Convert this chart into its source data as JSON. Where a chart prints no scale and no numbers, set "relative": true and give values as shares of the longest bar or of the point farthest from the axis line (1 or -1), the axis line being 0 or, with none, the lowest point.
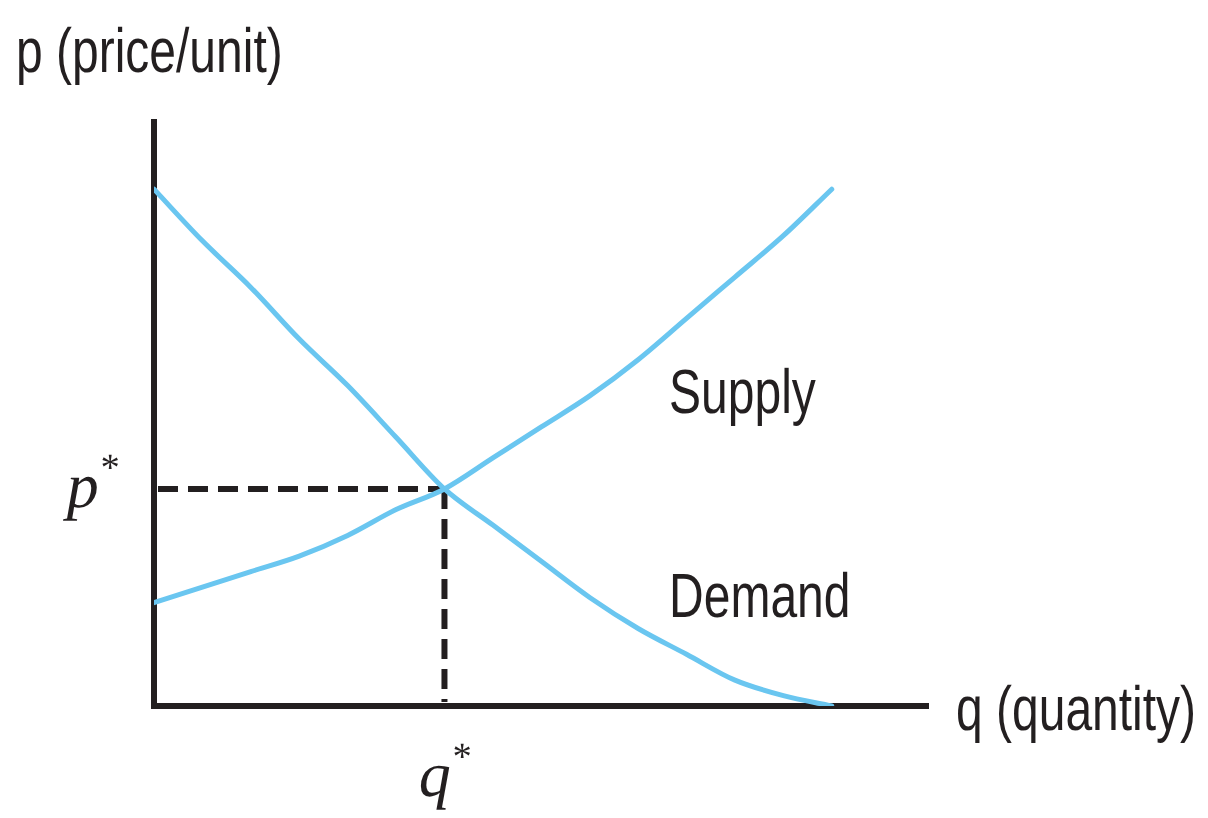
{
  "chart_data": {
    "type": "line",
    "relative": true,
    "xlabel": "q (quantity)",
    "ylabel": "p (price/unit)",
    "categories": [
      null,
      null,
      null,
      null,
      null,
      null,
      null,
      null,
      null,
      null,
      null,
      null,
      null,
      null,
      null
    ],
    "series": [
      {
        "name": "Supply",
        "color": "#6ac6f0",
        "values": [
          0.2,
          0.23,
          0.26,
          0.29,
          0.33,
          0.38,
          0.42,
          0.48,
          0.54,
          0.6,
          0.67,
          0.75,
          0.83,
          0.91,
          1
        ]
      },
      {
        "name": "Demand",
        "color": "#6ac6f0",
        "values": [
          1,
          0.9,
          0.81,
          0.71,
          0.62,
          0.52,
          0.42,
          0.35,
          0.28,
          0.21,
          0.15,
          0.1,
          0.05,
          0.02,
          0
        ]
      }
    ],
    "ref_lines": [
      {
        "axis": "y",
        "value": 0.42,
        "label": "p$^{*}$",
        "color": "#231f20",
        "line_style": "dashed"
      }
    ],
    "annotations": [
      "q$^{*}$"
    ],
    "grid": false,
    "legend": false,
    "marker": "none",
    "line_style": "solid"
  }
}
